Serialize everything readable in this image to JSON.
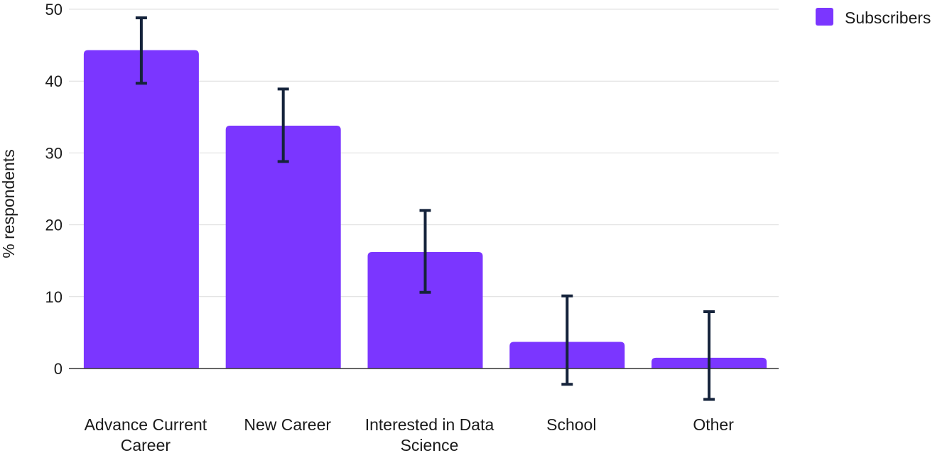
{
  "chart_data": {
    "type": "bar",
    "categories": [
      [
        "Advance Current",
        "Career"
      ],
      [
        "New Career"
      ],
      [
        "Interested in Data",
        "Science"
      ],
      [
        "School"
      ],
      [
        "Other"
      ]
    ],
    "series": [
      {
        "name": "Subscribers",
        "values": [
          44.3,
          33.8,
          16.2,
          3.7,
          1.5
        ],
        "error_low": [
          39.7,
          28.8,
          10.6,
          -2.2,
          -4.3
        ],
        "error_high": [
          48.8,
          38.9,
          22.0,
          10.1,
          7.9
        ]
      }
    ],
    "ylabel": "% respondents",
    "ylim": [
      0,
      50
    ],
    "yticks": [
      0,
      10,
      20,
      30,
      40,
      50
    ],
    "grid": true,
    "legend": "top-right",
    "colors": {
      "bar": "#7b36ff",
      "error_bar": "#15233b",
      "grid": "#dcdcdc",
      "axis": "#333333"
    }
  }
}
